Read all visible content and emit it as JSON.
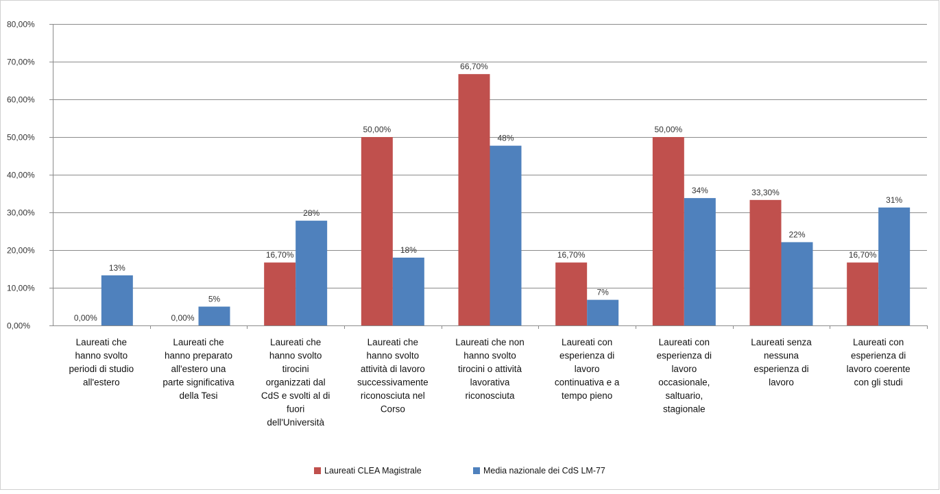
{
  "chart_data": {
    "type": "bar",
    "title": "",
    "xlabel": "",
    "ylabel": "",
    "ylim": [
      0,
      80
    ],
    "yticks": [
      {
        "value": 0,
        "label": "0,00%"
      },
      {
        "value": 10,
        "label": "10,00%"
      },
      {
        "value": 20,
        "label": "20,00%"
      },
      {
        "value": 30,
        "label": "30,00%"
      },
      {
        "value": 40,
        "label": "40,00%"
      },
      {
        "value": 50,
        "label": "50,00%"
      },
      {
        "value": 60,
        "label": "60,00%"
      },
      {
        "value": 70,
        "label": "70,00%"
      },
      {
        "value": 80,
        "label": "80,00%"
      }
    ],
    "grid": true,
    "legend_position": "bottom",
    "categories": [
      [
        "Laureati che",
        "hanno svolto",
        "periodi di studio",
        "all'estero"
      ],
      [
        "Laureati che",
        "hanno preparato",
        "all'estero una",
        "parte significativa",
        "della Tesi"
      ],
      [
        "Laureati che",
        "hanno svolto",
        "tirocini",
        "organizzati dal",
        "CdS e svolti al di",
        "fuori",
        "dell'Università"
      ],
      [
        "Laureati che",
        "hanno svolto",
        "attività di lavoro",
        "successivamente",
        "riconosciuta nel",
        "Corso"
      ],
      [
        "Laureati che non",
        "hanno svolto",
        "tirocini o attività",
        "lavorativa",
        "riconosciuta"
      ],
      [
        "Laureati con",
        "esperienza di",
        "lavoro",
        "continuativa e a",
        "tempo pieno"
      ],
      [
        "Laureati con",
        "esperienza di",
        "lavoro",
        "occasionale,",
        "saltuario,",
        "stagionale"
      ],
      [
        "Laureati senza",
        "nessuna",
        "esperienza di",
        "lavoro"
      ],
      [
        "Laureati con",
        "esperienza di",
        "lavoro coerente",
        "con gli studi"
      ]
    ],
    "series": [
      {
        "name": "Laureati CLEA Magistrale",
        "color": "#C0504D",
        "values": [
          0,
          0,
          16.7,
          50,
          66.7,
          16.7,
          50,
          33.3,
          16.7
        ],
        "labels": [
          "0,00%",
          "0,00%",
          "16,70%",
          "50,00%",
          "66,70%",
          "16,70%",
          "50,00%",
          "33,30%",
          "16,70%"
        ]
      },
      {
        "name": "Media nazionale dei CdS LM-77",
        "color": "#4F81BD",
        "values": [
          13.3,
          5,
          27.8,
          18,
          47.7,
          6.8,
          33.8,
          22.1,
          31.3
        ],
        "labels": [
          "13%",
          "5%",
          "28%",
          "18%",
          "48%",
          "7%",
          "34%",
          "22%",
          "31%"
        ]
      }
    ]
  }
}
